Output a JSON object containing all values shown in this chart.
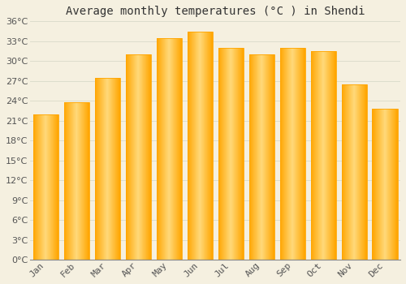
{
  "title": "Average monthly temperatures (°C ) in Shendi",
  "months": [
    "Jan",
    "Feb",
    "Mar",
    "Apr",
    "May",
    "Jun",
    "Jul",
    "Aug",
    "Sep",
    "Oct",
    "Nov",
    "Dec"
  ],
  "values": [
    22.0,
    23.8,
    27.5,
    31.0,
    33.5,
    34.5,
    32.0,
    31.0,
    32.0,
    31.5,
    26.5,
    22.8
  ],
  "bar_color_light": "#FFD97A",
  "bar_color_dark": "#FFA500",
  "background_color": "#F5F0E0",
  "plot_bg_color": "#F5F0E0",
  "grid_color": "#DDDDCC",
  "title_color": "#333333",
  "tick_color": "#555555",
  "spine_color": "#888888",
  "ylim": [
    0,
    36
  ],
  "yticks": [
    0,
    3,
    6,
    9,
    12,
    15,
    18,
    21,
    24,
    27,
    30,
    33,
    36
  ],
  "title_fontsize": 10,
  "tick_fontsize": 8,
  "bar_width": 0.82
}
